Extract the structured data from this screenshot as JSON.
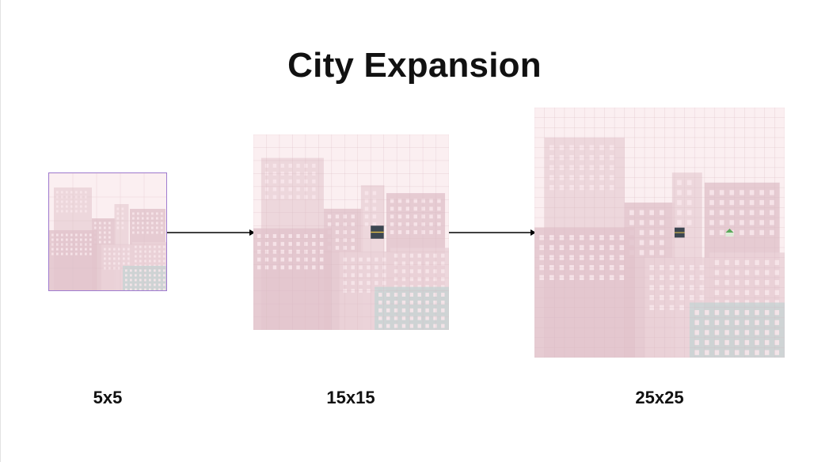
{
  "title": "City Expansion",
  "stages": [
    {
      "label": "5x5",
      "grid": 5,
      "road_tile": false,
      "house_tile": false
    },
    {
      "label": "15x15",
      "grid": 15,
      "road_tile": true,
      "house_tile": false
    },
    {
      "label": "25x25",
      "grid": 25,
      "road_tile": true,
      "house_tile": true
    }
  ],
  "colors": {
    "panel_bg": "#fbeff1",
    "building": "#ead2d8",
    "building_dark": "#e2c4cc",
    "window": "#f7e6ea",
    "teal_building": "#c9d4d4",
    "grid_line": "#d8b8c0",
    "border_5x5": "#a07cd0",
    "road": "#3c4651",
    "road_stripe": "#e8c34a",
    "house_roof": "#5aa85a"
  }
}
